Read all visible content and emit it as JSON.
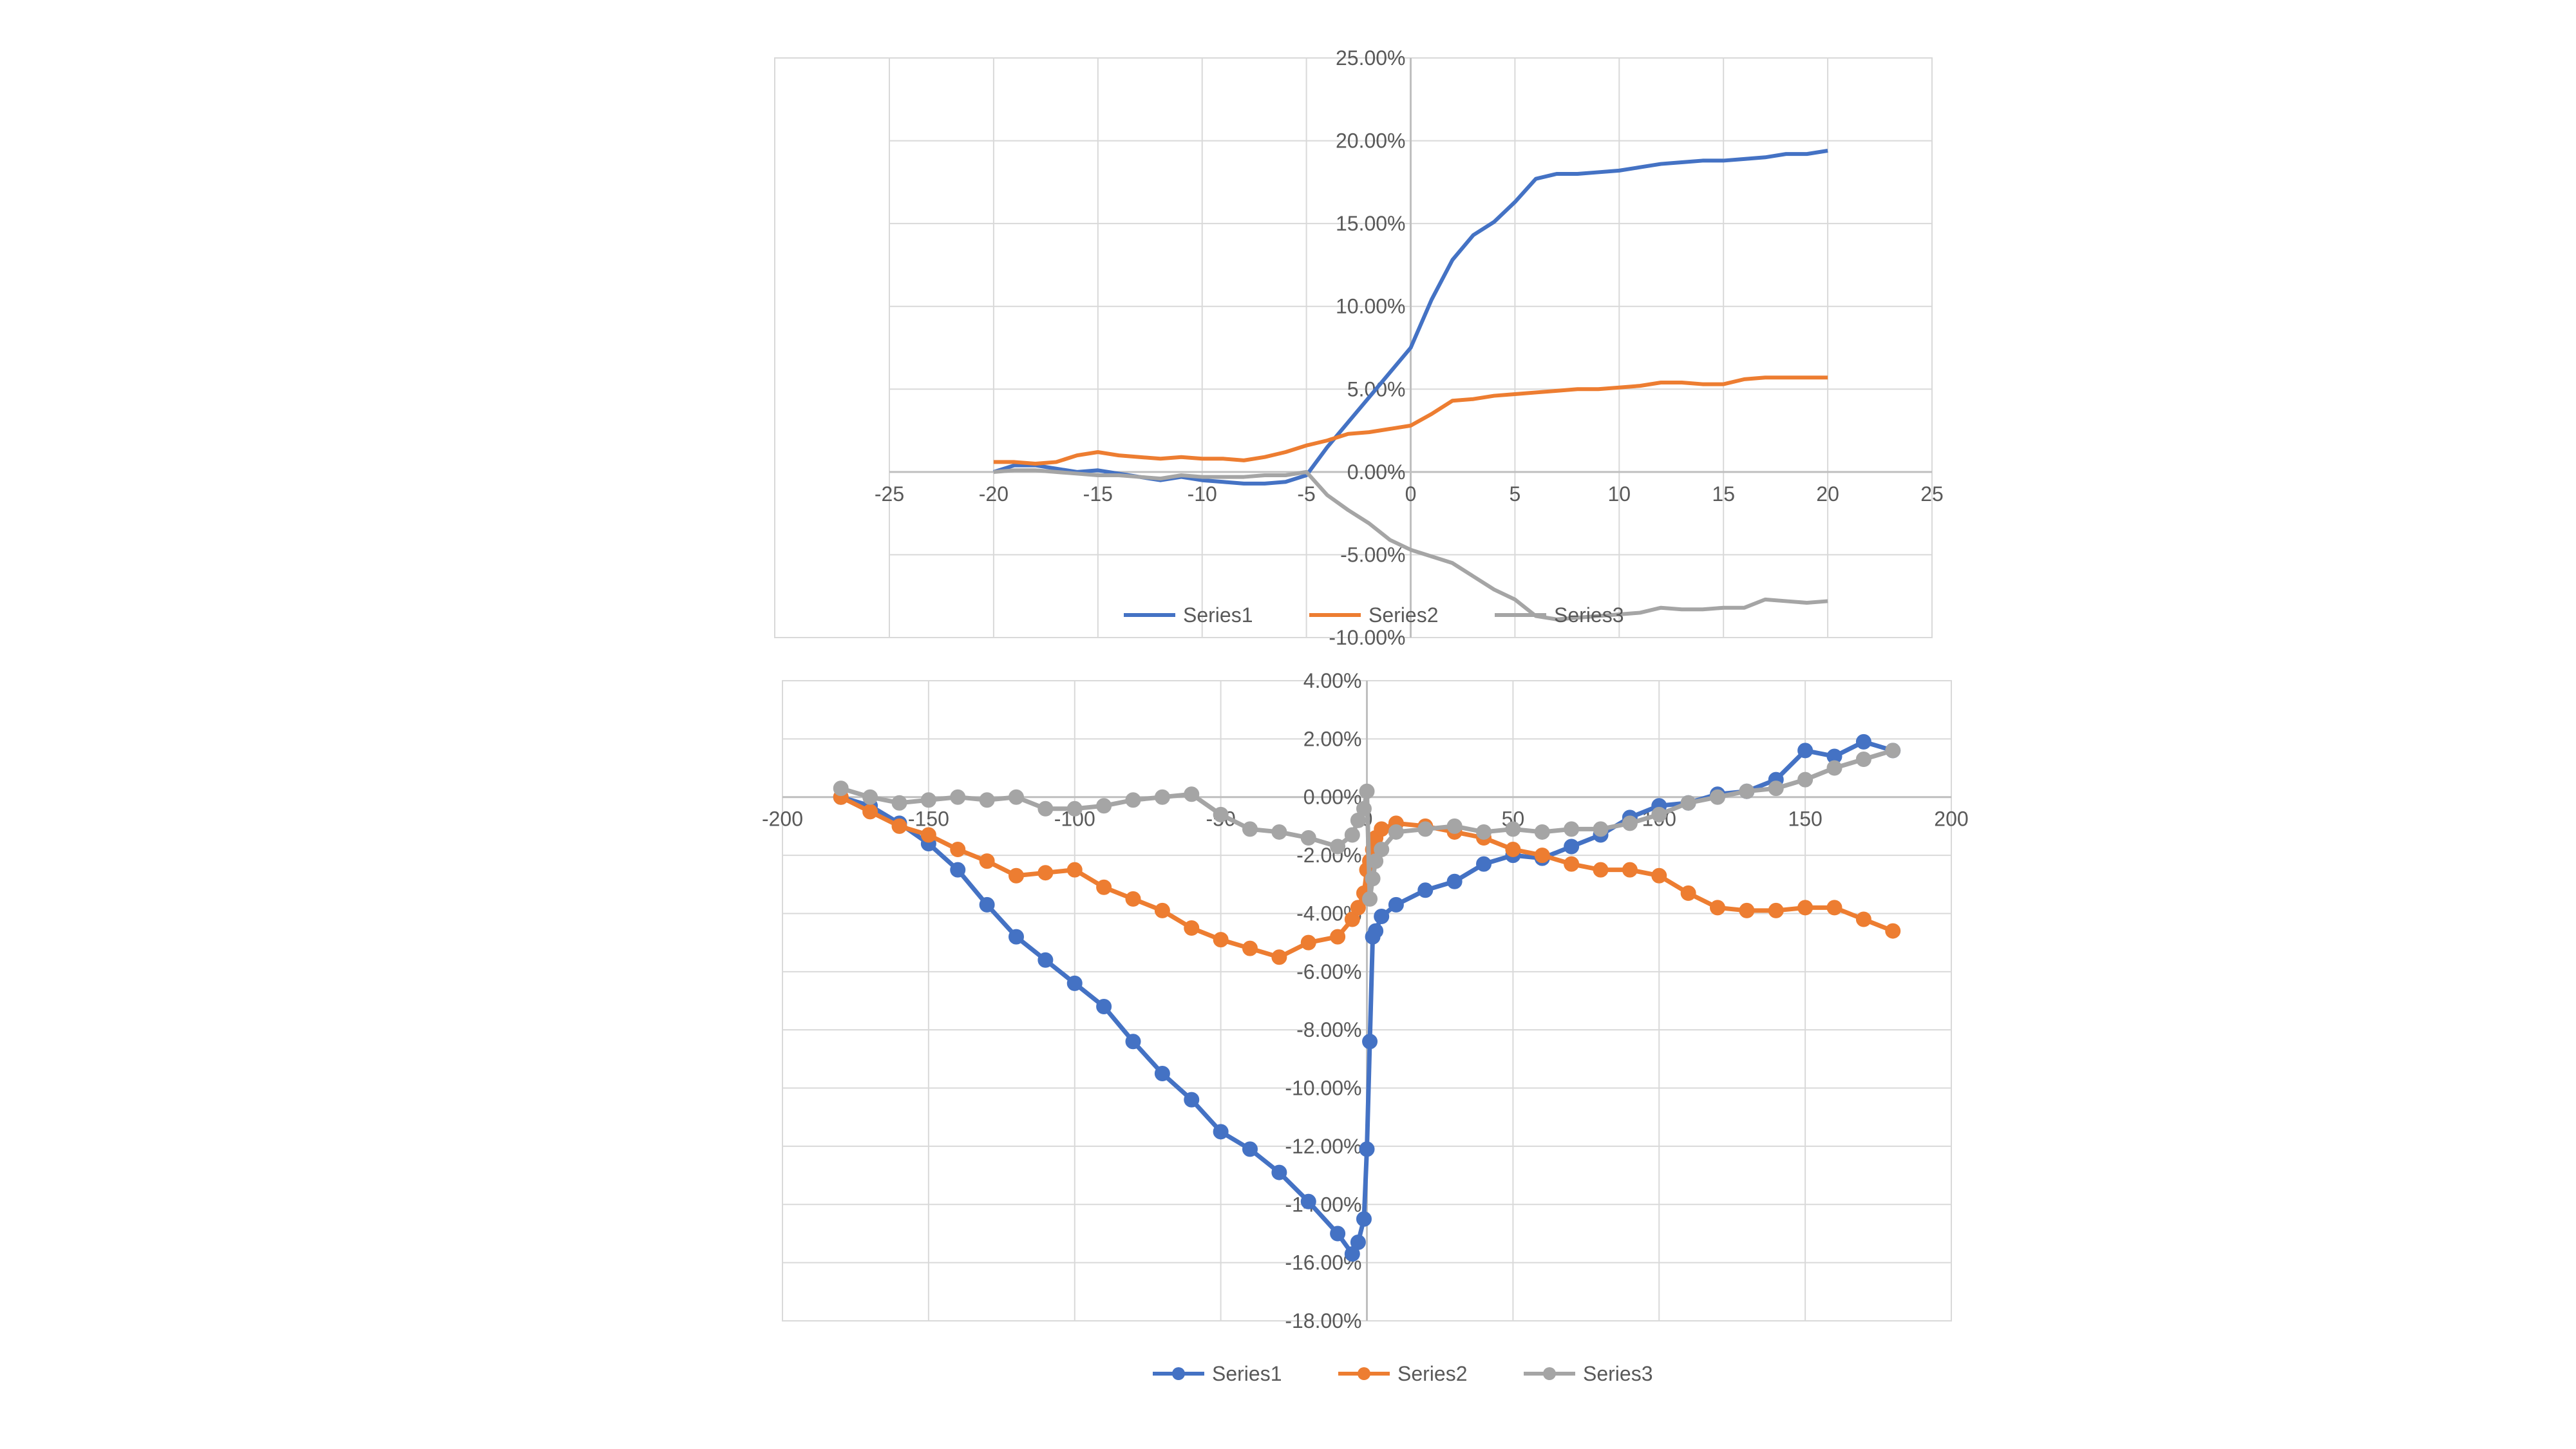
{
  "colors": {
    "series1": "#4472C4",
    "series2": "#ED7D31",
    "series3": "#A5A5A5",
    "grid": "#D9D9D9",
    "axis": "#BFBFBF",
    "text": "#595959"
  },
  "chart_data": [
    {
      "type": "line",
      "title": "",
      "xlabel": "",
      "ylabel": "",
      "xlim": [
        -25,
        25
      ],
      "ylim": [
        -0.1,
        0.25
      ],
      "xticks": [
        "-25",
        "-20",
        "-15",
        "-10",
        "-5",
        "0",
        "5",
        "10",
        "15",
        "20",
        "25"
      ],
      "yticks": [
        "25.00%",
        "20.00%",
        "15.00%",
        "10.00%",
        "5.00%",
        "0.00%",
        "-5.00%",
        "-10.00%"
      ],
      "grid": true,
      "legend_position": "bottom",
      "legend": [
        "Series1",
        "Series2",
        "Series3"
      ],
      "x": [
        -20,
        -19,
        -18,
        -17,
        -16,
        -15,
        -14,
        -13,
        -12,
        -11,
        -10,
        -9,
        -8,
        -7,
        -6,
        -5,
        -4,
        -3,
        -2,
        -1,
        0,
        1,
        2,
        3,
        4,
        5,
        6,
        7,
        8,
        9,
        10,
        11,
        12,
        13,
        14,
        15,
        16,
        17,
        18,
        19,
        20
      ],
      "series": [
        {
          "name": "Series1",
          "values": [
            0.0,
            0.004,
            0.004,
            0.002,
            0.0,
            0.001,
            -0.001,
            -0.003,
            -0.005,
            -0.003,
            -0.005,
            -0.006,
            -0.007,
            -0.007,
            -0.006,
            -0.002,
            0.015,
            0.03,
            0.045,
            0.06,
            0.075,
            0.104,
            0.128,
            0.143,
            0.151,
            0.163,
            0.177,
            0.18,
            0.18,
            0.181,
            0.182,
            0.184,
            0.186,
            0.187,
            0.188,
            0.188,
            0.189,
            0.19,
            0.192,
            0.192,
            0.194
          ]
        },
        {
          "name": "Series2",
          "values": [
            0.006,
            0.006,
            0.005,
            0.006,
            0.01,
            0.012,
            0.01,
            0.009,
            0.008,
            0.009,
            0.008,
            0.008,
            0.007,
            0.009,
            0.012,
            0.016,
            0.019,
            0.023,
            0.024,
            0.026,
            0.028,
            0.035,
            0.043,
            0.044,
            0.046,
            0.047,
            0.048,
            0.049,
            0.05,
            0.05,
            0.051,
            0.052,
            0.054,
            0.054,
            0.053,
            0.053,
            0.056,
            0.057,
            0.057,
            0.057,
            0.057
          ]
        },
        {
          "name": "Series3",
          "values": [
            0.0,
            0.001,
            0.001,
            0.0,
            -0.001,
            -0.002,
            -0.002,
            -0.003,
            -0.004,
            -0.002,
            -0.003,
            -0.003,
            -0.003,
            -0.002,
            -0.002,
            0.0,
            -0.014,
            -0.023,
            -0.031,
            -0.041,
            -0.047,
            -0.051,
            -0.055,
            -0.063,
            -0.071,
            -0.077,
            -0.087,
            -0.089,
            -0.088,
            -0.087,
            -0.086,
            -0.085,
            -0.082,
            -0.083,
            -0.083,
            -0.082,
            -0.082,
            -0.077,
            -0.078,
            -0.079,
            -0.078
          ]
        }
      ]
    },
    {
      "type": "scatter",
      "title": "",
      "xlabel": "",
      "ylabel": "",
      "xlim": [
        -200,
        200
      ],
      "ylim": [
        -0.18,
        0.04
      ],
      "xticks": [
        "-200",
        "-150",
        "-100",
        "-50",
        "0",
        "50",
        "100",
        "150",
        "200"
      ],
      "yticks": [
        "4.00%",
        "2.00%",
        "0.00%",
        "-2.00%",
        "-4.00%",
        "-6.00%",
        "-8.00%",
        "-10.00%",
        "-12.00%",
        "-14.00%",
        "-16.00%",
        "-18.00%"
      ],
      "grid": true,
      "legend_position": "bottom",
      "legend": [
        "Series1",
        "Series2",
        "Series3"
      ],
      "x": [
        -180,
        -170,
        -160,
        -150,
        -140,
        -130,
        -120,
        -110,
        -100,
        -90,
        -80,
        -70,
        -60,
        -50,
        -40,
        -30,
        -20,
        -10,
        -5,
        -3,
        -1,
        0,
        1,
        2,
        3,
        5,
        10,
        20,
        30,
        40,
        50,
        60,
        70,
        80,
        90,
        100,
        110,
        120,
        130,
        140,
        150,
        160,
        170,
        180
      ],
      "series": [
        {
          "name": "Series1",
          "values": [
            0.0,
            -0.003,
            -0.009,
            -0.016,
            -0.025,
            -0.037,
            -0.048,
            -0.056,
            -0.064,
            -0.072,
            -0.084,
            -0.095,
            -0.104,
            -0.115,
            -0.121,
            -0.129,
            -0.139,
            -0.15,
            -0.157,
            -0.153,
            -0.145,
            -0.121,
            -0.084,
            -0.048,
            -0.046,
            -0.041,
            -0.037,
            -0.032,
            -0.029,
            -0.023,
            -0.02,
            -0.021,
            -0.017,
            -0.013,
            -0.007,
            -0.003,
            -0.002,
            0.001,
            0.002,
            0.006,
            0.016,
            0.014,
            0.019,
            0.016
          ]
        },
        {
          "name": "Series2",
          "values": [
            0.0,
            -0.005,
            -0.01,
            -0.013,
            -0.018,
            -0.022,
            -0.027,
            -0.026,
            -0.025,
            -0.031,
            -0.035,
            -0.039,
            -0.045,
            -0.049,
            -0.052,
            -0.055,
            -0.05,
            -0.048,
            -0.042,
            -0.038,
            -0.033,
            -0.025,
            -0.022,
            -0.018,
            -0.014,
            -0.011,
            -0.009,
            -0.01,
            -0.012,
            -0.014,
            -0.018,
            -0.02,
            -0.023,
            -0.025,
            -0.025,
            -0.027,
            -0.033,
            -0.038,
            -0.039,
            -0.039,
            -0.038,
            -0.038,
            -0.042,
            -0.046
          ]
        },
        {
          "name": "Series3",
          "values": [
            0.003,
            0.0,
            -0.002,
            -0.001,
            0.0,
            -0.001,
            0.0,
            -0.004,
            -0.004,
            -0.003,
            -0.001,
            0.0,
            0.001,
            -0.006,
            -0.011,
            -0.012,
            -0.014,
            -0.017,
            -0.013,
            -0.008,
            -0.004,
            0.002,
            -0.035,
            -0.028,
            -0.022,
            -0.018,
            -0.012,
            -0.011,
            -0.01,
            -0.012,
            -0.011,
            -0.012,
            -0.011,
            -0.011,
            -0.009,
            -0.006,
            -0.002,
            0.0,
            0.002,
            0.003,
            0.006,
            0.01,
            0.013,
            0.016
          ]
        }
      ]
    }
  ]
}
